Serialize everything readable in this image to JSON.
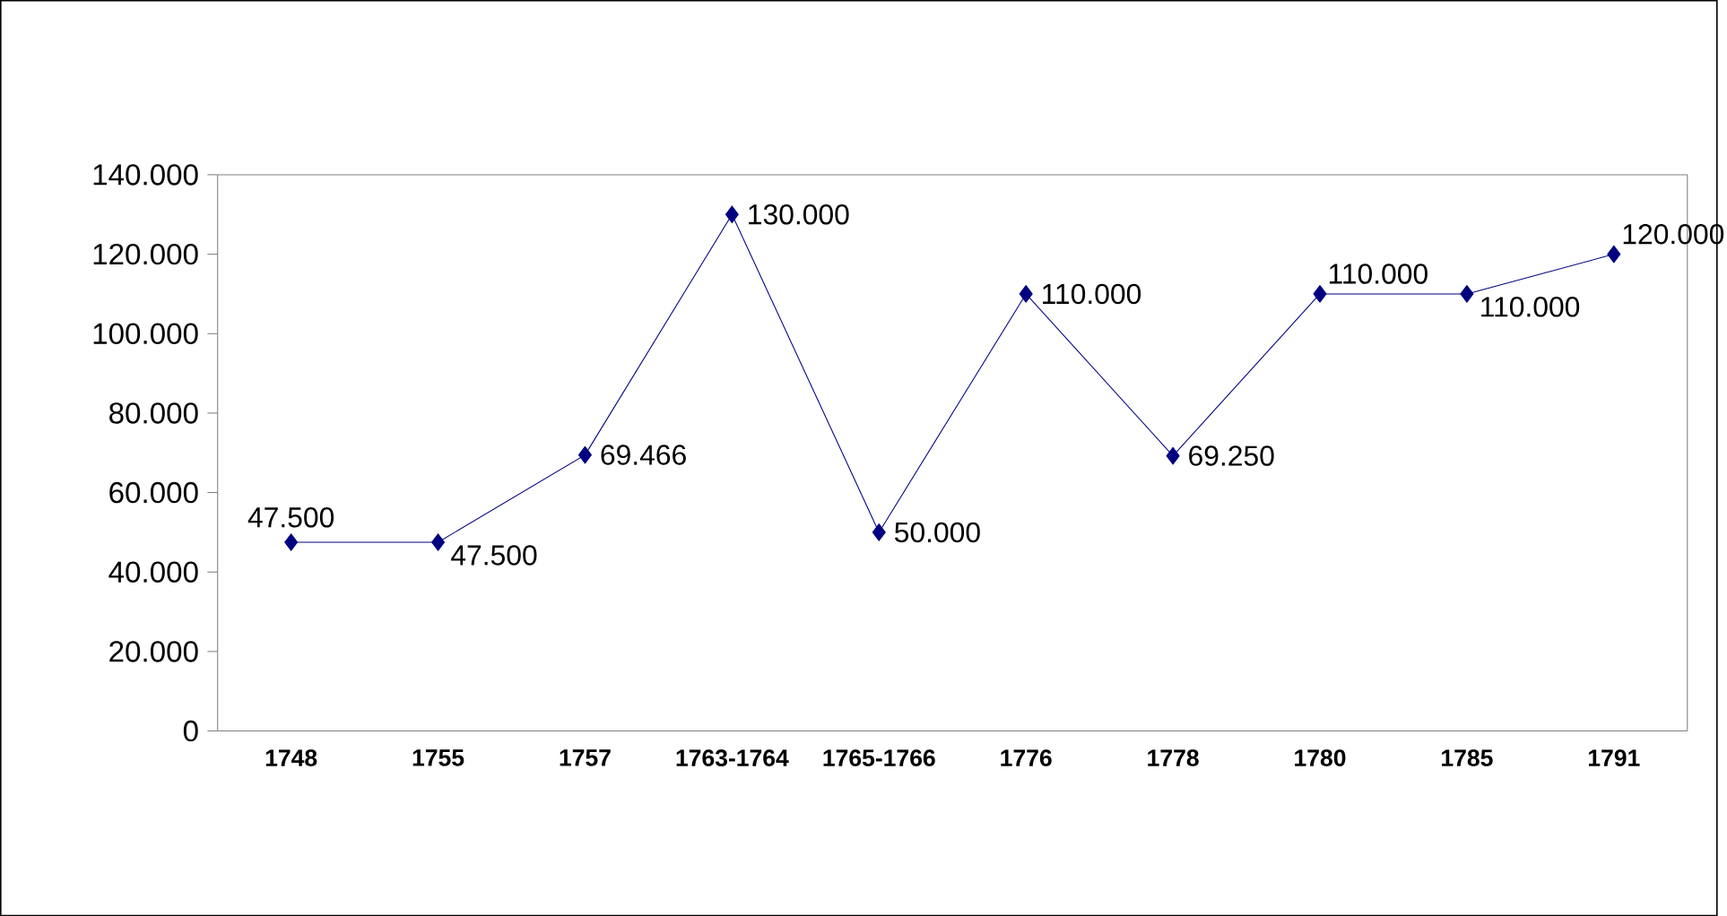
{
  "chart_data": {
    "type": "line",
    "categories": [
      "1748",
      "1755",
      "1757",
      "1763-1764",
      "1765-1766",
      "1776",
      "1778",
      "1780",
      "1785",
      "1791"
    ],
    "series": [
      {
        "color": "#000080",
        "values": [
          47500,
          47500,
          69466,
          130000,
          50000,
          110000,
          69250,
          110000,
          110000,
          120000
        ],
        "value_labels": [
          "47.500",
          "47.500",
          "69.466",
          "130.000",
          "50.000",
          "110.000",
          "69.250",
          "110.000",
          "110.000",
          "120.000"
        ]
      }
    ],
    "ylim": [
      0,
      140000
    ],
    "yticks": [
      {
        "value": 0,
        "label": "0"
      },
      {
        "value": 20000,
        "label": "20.000"
      },
      {
        "value": 40000,
        "label": "40.000"
      },
      {
        "value": 60000,
        "label": "60.000"
      },
      {
        "value": 80000,
        "label": "80.000"
      },
      {
        "value": 100000,
        "label": "100.000"
      },
      {
        "value": 120000,
        "label": "120.000"
      },
      {
        "value": 140000,
        "label": "140.000"
      }
    ],
    "marker": "diamond",
    "line_style": "solid"
  }
}
